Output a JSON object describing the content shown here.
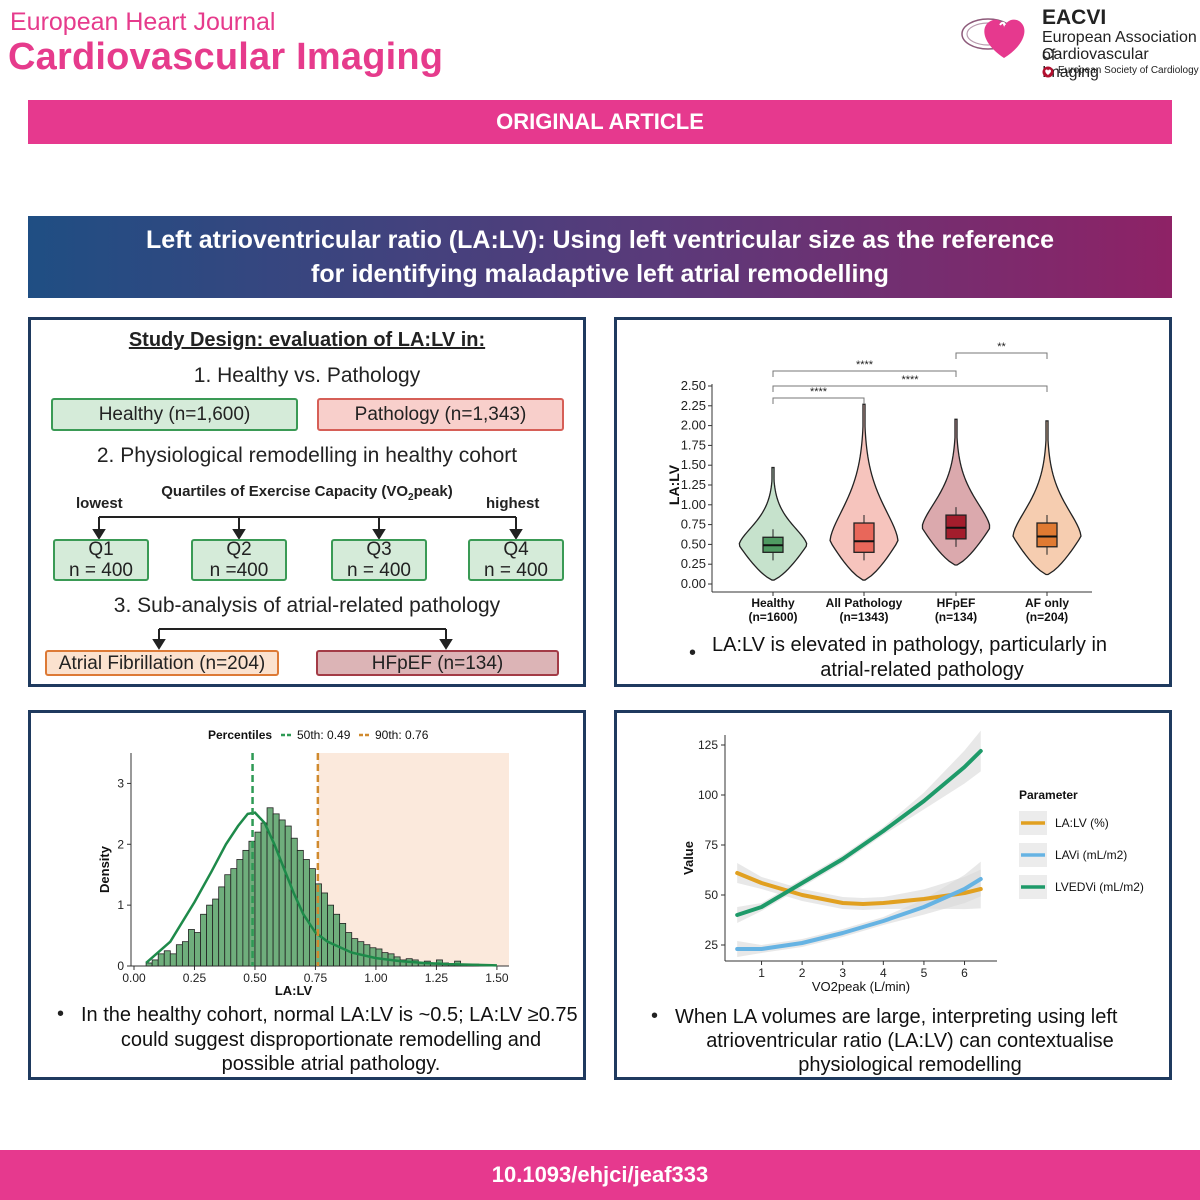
{
  "header": {
    "journal_line1": "European Heart Journal",
    "journal_line2": "Cardiovascular Imaging",
    "org_acronym": "EACVI",
    "org_line1": "European Association of",
    "org_line2": "Cardiovascular Imaging",
    "esc_name": "European Society of Cardiology",
    "brand_color": "#e6398e"
  },
  "banner": {
    "label": "ORIGINAL ARTICLE"
  },
  "title": {
    "line1": "Left atrioventricular ratio (LA:LV): Using left ventricular size as the reference",
    "line2": "for identifying maladaptive left atrial remodelling"
  },
  "study_design": {
    "heading": "Study Design: evaluation of LA:LV in:",
    "step1": "1.  Healthy vs. Pathology",
    "healthy": "Healthy (n=1,600)",
    "pathology": "Pathology (n=1,343)",
    "step2": "2. Physiological remodelling in healthy cohort",
    "quartile_title": "Quartiles of Exercise Capacity (VO",
    "quartile_sub": "2",
    "quartile_end": "peak)",
    "lowest": "lowest",
    "highest": "highest",
    "quartiles": [
      {
        "q": "Q1",
        "n": "n = 400"
      },
      {
        "q": "Q2",
        "n": "n =400"
      },
      {
        "q": "Q3",
        "n": "n = 400"
      },
      {
        "q": "Q4",
        "n": "n = 400"
      }
    ],
    "step3": "3. Sub-analysis of atrial-related pathology",
    "af": "Atrial Fibrillation (n=204)",
    "hfpef": "HFpEF (n=134)"
  },
  "violin_panel": {
    "bullet": "LA:LV is elevated in pathology, particularly in atrial-related pathology",
    "bullet_line1": "LA:LV is elevated in pathology, particularly in",
    "bullet_line2": "atrial-related pathology"
  },
  "hist_panel": {
    "bullet_line1": "In the healthy cohort, normal LA:LV is ~0.5; LA:LV ≥0.75",
    "bullet_line2": "could suggest disproportionate remodelling and",
    "bullet_line3": "possible atrial pathology."
  },
  "line_panel": {
    "bullet_line1": "When LA volumes are large, interpreting using left",
    "bullet_line2": "atrioventricular ratio (LA:LV) can contextualise",
    "bullet_line3": "physiological remodelling"
  },
  "footer": {
    "doi": "10.1093/ehjci/jeaf333"
  },
  "chart_data": [
    {
      "type": "violin",
      "ylabel": "LA:LV",
      "ylim": [
        0,
        2.5
      ],
      "yticks": [
        "0.00",
        "0.25",
        "0.50",
        "0.75",
        "1.00",
        "1.25",
        "1.50",
        "1.75",
        "2.00",
        "2.25",
        "2.50"
      ],
      "groups": [
        {
          "name": "Healthy",
          "n": "(n=1600)",
          "median": 0.49,
          "q1": 0.4,
          "q3": 0.59,
          "min": 0.05,
          "max": 1.47,
          "color": "#4f9a62",
          "fill": "#c6e2cc"
        },
        {
          "name": "All Pathology",
          "n": "(n=1343)",
          "median": 0.54,
          "q1": 0.4,
          "q3": 0.77,
          "min": 0.05,
          "max": 2.27,
          "color": "#e8675a",
          "fill": "#f6c4bd"
        },
        {
          "name": "HFpEF",
          "n": "(n=134)",
          "median": 0.71,
          "q1": 0.57,
          "q3": 0.87,
          "min": 0.24,
          "max": 2.08,
          "color": "#a31d2c",
          "fill": "#dba9ad"
        },
        {
          "name": "AF only",
          "n": "(n=204)",
          "median": 0.6,
          "q1": 0.47,
          "q3": 0.77,
          "min": 0.12,
          "max": 2.06,
          "color": "#e07a32",
          "fill": "#f6cdb0"
        }
      ],
      "significance": [
        {
          "from": 0,
          "to": 1,
          "label": "****"
        },
        {
          "from": 0,
          "to": 2,
          "label": "****"
        },
        {
          "from": 0,
          "to": 3,
          "label": "****"
        },
        {
          "from": 2,
          "to": 3,
          "label": "**"
        }
      ]
    },
    {
      "type": "histogram",
      "xlabel": "LA:LV",
      "ylabel": "Density",
      "xlim": [
        0,
        1.55
      ],
      "ylim": [
        0,
        3.5
      ],
      "xticks": [
        "0.00",
        "0.25",
        "0.50",
        "0.75",
        "1.00",
        "1.25",
        "1.50"
      ],
      "yticks": [
        "0",
        "1",
        "2",
        "3"
      ],
      "legend_title": "Percentiles",
      "percentiles": [
        {
          "label": "50th: 0.49",
          "value": 0.49,
          "color": "#2e9a55"
        },
        {
          "label": "90th: 0.76",
          "value": 0.76,
          "color": "#d08a2e"
        }
      ],
      "shade_from": 0.76,
      "bin_width": 0.025,
      "bin_start": 0.05,
      "densities": [
        0.05,
        0.1,
        0.2,
        0.25,
        0.2,
        0.35,
        0.4,
        0.6,
        0.55,
        0.85,
        1.0,
        1.1,
        1.3,
        1.5,
        1.6,
        1.75,
        1.9,
        2.05,
        2.2,
        2.35,
        2.6,
        2.5,
        2.4,
        2.3,
        2.1,
        1.9,
        1.75,
        1.6,
        1.35,
        1.2,
        1.0,
        0.85,
        0.7,
        0.55,
        0.45,
        0.4,
        0.35,
        0.3,
        0.28,
        0.22,
        0.2,
        0.15,
        0.1,
        0.12,
        0.1,
        0.06,
        0.08,
        0.05,
        0.1,
        0.05,
        0.04,
        0.08,
        0.03,
        0.02,
        0.03
      ],
      "curve_x": [
        0.05,
        0.15,
        0.25,
        0.32,
        0.38,
        0.43,
        0.47,
        0.5,
        0.54,
        0.58,
        0.62,
        0.66,
        0.7,
        0.75,
        0.8,
        0.9,
        1.0,
        1.1,
        1.2,
        1.3,
        1.4,
        1.5
      ],
      "curve_y": [
        0.05,
        0.4,
        1.05,
        1.55,
        2.0,
        2.3,
        2.5,
        2.52,
        2.35,
        2.0,
        1.6,
        1.2,
        0.85,
        0.55,
        0.4,
        0.22,
        0.13,
        0.08,
        0.05,
        0.03,
        0.02,
        0.01
      ]
    },
    {
      "type": "line",
      "xlabel": "VO2peak (L/min)",
      "ylabel": "Value",
      "xlim": [
        0.1,
        6.8
      ],
      "ylim": [
        17,
        130
      ],
      "xticks": [
        "1",
        "2",
        "3",
        "4",
        "5",
        "6"
      ],
      "yticks": [
        "25",
        "50",
        "75",
        "100",
        "125"
      ],
      "legend_title": "Parameter",
      "series": [
        {
          "name": "LA:LV (%)",
          "color": "#e1a020",
          "x": [
            0.4,
            1,
            2,
            3,
            3.5,
            4,
            5,
            6,
            6.4
          ],
          "y": [
            61,
            56,
            50,
            46,
            45.5,
            46,
            48,
            51,
            53
          ]
        },
        {
          "name": "LAVi (mL/m2)",
          "color": "#66b3e3",
          "x": [
            0.4,
            1,
            2,
            3,
            4,
            5,
            6,
            6.4
          ],
          "y": [
            23,
            23,
            26,
            31,
            37,
            44,
            53,
            58
          ]
        },
        {
          "name": "LVEDVi (mL/m2)",
          "color": "#1e9a69",
          "x": [
            0.4,
            1,
            2,
            3,
            4,
            5,
            6,
            6.4
          ],
          "y": [
            40,
            44,
            56,
            68,
            82,
            97,
            114,
            122
          ]
        }
      ]
    }
  ]
}
